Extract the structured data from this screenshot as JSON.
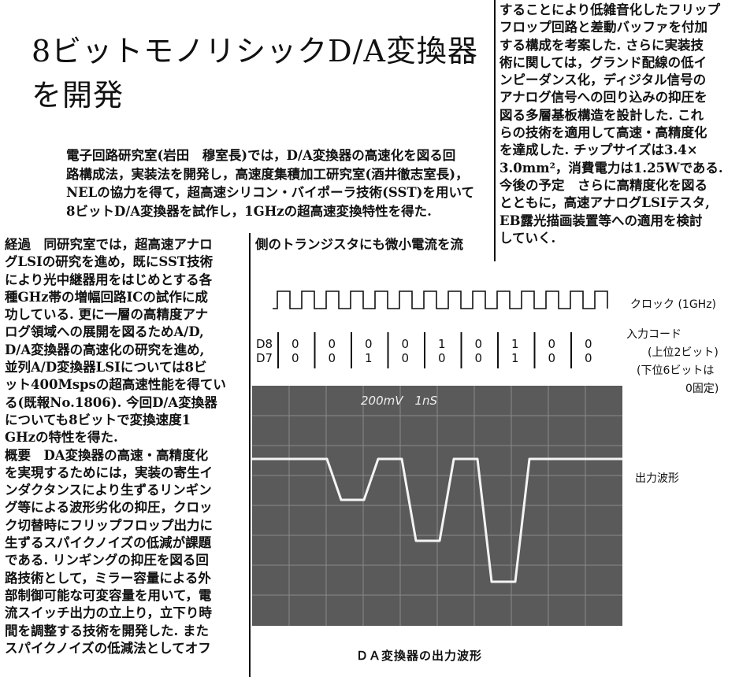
{
  "title": {
    "line1": "8ビットモノリシックD/A変換器",
    "line2": "を開発"
  },
  "lead": [
    "電子回路研究室(岩田　穆室長)では，D/A変換器の高速化を図る回",
    "路構成法，実装法を開発し，高速度集積加工研究室(酒井徹志室長)，",
    "NELの協力を得て，超高速シリコン・バイポーラ技術(SST)を用いて",
    "8ビットD/A変換器を試作し，1GHzの超高速変換特性を得た."
  ],
  "left_column": {
    "keizoku_heading": "経過",
    "keizoku_lines": [
      "同研究室では，超高速アナロ",
      "グLSIの研究を進め，既にSST技術",
      "により光中継器用をはじめとする各",
      "種GHz帯の増幅回路ICの試作に成",
      "功している. 更に一層の高精度アナ",
      "ログ領域への展開を図るためA/D,",
      "D/A変換器の高速化の研究を進め,",
      "並列A/D変換器LSIについては8ビ",
      "ット400Mspsの超高速性能を得てい",
      "る(既報No.1806). 今回D/A変換器",
      "についても8ビットで変換速度1",
      "GHzの特性を得た."
    ],
    "gaiyou_heading": "概要",
    "gaiyou_lines": [
      "DA変換器の高速・高精度化",
      "を実現するためには，実装の寄生イ",
      "ンダクタンスにより生ずるリンギン",
      "グ等による波形劣化の抑圧，クロッ",
      "ク切替時にフリップフロップ出力に",
      "生ずるスパイクノイズの低減が課題",
      "である. リンギングの抑圧を図る回",
      "路技術として，ミラー容量による外",
      "部制御可能な可変容量を用いて，電",
      "流スイッチ出力の立上り，立下り時",
      "間を調整する技術を開発した. また",
      "スパイクノイズの低減法としてオフ"
    ]
  },
  "middle_column": {
    "lines": [
      "側のトランジスタにも微小電流を流"
    ]
  },
  "right_column": {
    "lines": [
      "することにより低雑音化したフリップ",
      "フロップ回路と差動バッファを付加",
      "する構成を考案した. さらに実装技",
      "術に関しては，グランド配線の低イ",
      "ンピーダンス化，ディジタル信号の",
      "アナログ信号への回り込みの抑圧を",
      "図る多層基板構造を設計した. これ",
      "らの技術を適用して高速・高精度化",
      "を達成した. チップサイズは3.4×",
      "3.0mm²，消費電力は1.25Wである."
    ],
    "plan_heading": "今後の予定",
    "plan_lines": [
      "さらに高精度化を図る",
      "とともに，高速アナログLSIテスタ,",
      "EB露光描画装置等への適用を検討",
      "していく."
    ]
  },
  "figure": {
    "clock_label": "クロック (1GHz)",
    "input_code_label": "入力コード",
    "upper_bits_label": "(上位2ビット)",
    "lower_bits_label1": "(下位6ビットは",
    "lower_bits_label2": "0固定)",
    "row_labels": [
      "D8",
      "D7"
    ],
    "d8": [
      "0",
      "0",
      "0",
      "0",
      "1",
      "0",
      "1",
      "0",
      "0"
    ],
    "d7": [
      "0",
      "0",
      "1",
      "0",
      "0",
      "0",
      "1",
      "0",
      "0"
    ],
    "scope_text": "200mV　1nS",
    "output_label": "出力波形",
    "caption": "ＤＡ変換器の出力波形",
    "scope_bg": "#5a5a5a",
    "trace_color": "#f4f4f4"
  }
}
